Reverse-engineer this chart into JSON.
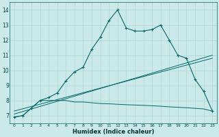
{
  "xlabel": "Humidex (Indice chaleur)",
  "ylabel": "",
  "background_color": "#cce9e9",
  "grid_color": "#aad4d4",
  "line_color": "#006666",
  "xlim": [
    -0.5,
    23.5
  ],
  "ylim": [
    6.5,
    14.5
  ],
  "yticks": [
    7,
    8,
    9,
    10,
    11,
    12,
    13,
    14
  ],
  "xticks": [
    0,
    1,
    2,
    3,
    4,
    5,
    6,
    7,
    8,
    9,
    10,
    11,
    12,
    13,
    14,
    15,
    16,
    17,
    18,
    19,
    20,
    21,
    22,
    23
  ],
  "line1_x": [
    0,
    1,
    2,
    3,
    4,
    5,
    6,
    7,
    8,
    9,
    10,
    11,
    12,
    13,
    14,
    15,
    16,
    17,
    18,
    19,
    20,
    21,
    22,
    23
  ],
  "line1_y": [
    6.9,
    7.0,
    7.5,
    8.0,
    8.2,
    8.5,
    9.3,
    9.9,
    10.2,
    11.4,
    12.2,
    13.3,
    14.0,
    12.8,
    12.6,
    12.6,
    12.7,
    13.0,
    12.0,
    11.0,
    10.8,
    9.4,
    8.6,
    7.3
  ],
  "line2_x": [
    0,
    1,
    2,
    3,
    4,
    5,
    6,
    7,
    8,
    9,
    10,
    11,
    12,
    13,
    14,
    15,
    16,
    17,
    18,
    19,
    20,
    21,
    22,
    23
  ],
  "line2_y": [
    6.9,
    7.0,
    7.5,
    8.0,
    8.0,
    8.0,
    8.0,
    7.9,
    7.9,
    7.85,
    7.8,
    7.78,
    7.75,
    7.72,
    7.7,
    7.68,
    7.65,
    7.62,
    7.58,
    7.55,
    7.52,
    7.48,
    7.44,
    7.3
  ],
  "line3_x": [
    0,
    23
  ],
  "line3_y": [
    7.1,
    11.0
  ],
  "line4_x": [
    0,
    23
  ],
  "line4_y": [
    7.3,
    10.8
  ]
}
